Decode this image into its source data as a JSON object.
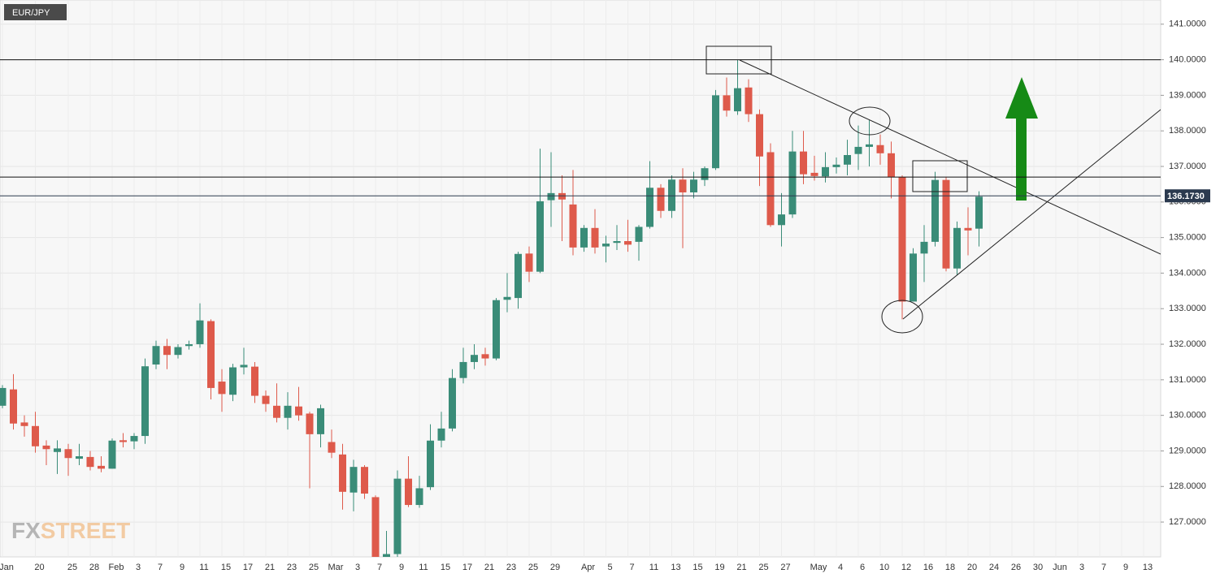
{
  "chart_data": {
    "type": "candlestick",
    "title": "EUR/JPY",
    "watermark": [
      "FX",
      "STREET"
    ],
    "up_color": "#3a8c78",
    "down_color": "#de5a4b",
    "grid": true,
    "ylim": [
      126.02,
      141.68
    ],
    "yticks": [
      {
        "value": 127,
        "label": "127.0000"
      },
      {
        "value": 128,
        "label": "128.0000"
      },
      {
        "value": 129,
        "label": "129.0000"
      },
      {
        "value": 130,
        "label": "130.0000"
      },
      {
        "value": 131,
        "label": "131.0000"
      },
      {
        "value": 132,
        "label": "132.0000"
      },
      {
        "value": 133,
        "label": "133.0000"
      },
      {
        "value": 134,
        "label": "134.0000"
      },
      {
        "value": 135,
        "label": "135.0000"
      },
      {
        "value": 136,
        "label": "136.0000"
      },
      {
        "value": 137,
        "label": "137.0000"
      },
      {
        "value": 138,
        "label": "138.0000"
      },
      {
        "value": 139,
        "label": "139.0000"
      },
      {
        "value": 140,
        "label": "140.0000"
      },
      {
        "value": 141,
        "label": "141.0000"
      }
    ],
    "levels": [
      140,
      136.7
    ],
    "last_price": {
      "value": 136.173,
      "label": "136.1730"
    },
    "categories": [
      "Jan",
      null,
      null,
      "20",
      null,
      null,
      "25",
      null,
      "28",
      null,
      "Feb",
      null,
      "3",
      null,
      "7",
      null,
      "9",
      null,
      "11",
      null,
      "15",
      null,
      "17",
      null,
      "21",
      null,
      "23",
      null,
      "25",
      null,
      "Mar",
      null,
      "3",
      null,
      "7",
      null,
      "9",
      null,
      "11",
      null,
      "15",
      null,
      "17",
      null,
      "21",
      null,
      "23",
      null,
      "25",
      null,
      "29",
      null,
      null,
      "Apr",
      null,
      "5",
      null,
      "7",
      null,
      "11",
      null,
      "13",
      null,
      "15",
      null,
      "19",
      null,
      "21",
      null,
      "25",
      null,
      "27",
      null,
      null,
      "May",
      null,
      "4",
      null,
      "6",
      null,
      "10",
      null,
      "12",
      null,
      "16",
      null,
      "18",
      null,
      "20",
      null,
      "24",
      null,
      "26",
      null,
      "30",
      null,
      "Jun",
      null,
      "3",
      null,
      "7",
      null,
      "9",
      null,
      "13",
      null
    ],
    "open": [
      130.27,
      130.73,
      129.8,
      129.7,
      129.15,
      128.97,
      129.05,
      128.78,
      128.83,
      128.58,
      128.5,
      129.3,
      129.27,
      129.42,
      131.43,
      131.95,
      131.7,
      131.95,
      132.0,
      132.65,
      130.95,
      130.58,
      131.35,
      131.37,
      130.55,
      130.27,
      129.93,
      130.25,
      130.05,
      129.47,
      129.25,
      128.9,
      127.83,
      128.55,
      127.7,
      126.0,
      126.1,
      128.22,
      127.48,
      127.98,
      129.29,
      129.63,
      131.05,
      131.5,
      131.72,
      131.6,
      133.25,
      133.3,
      134.55,
      134.04,
      136.05,
      136.25,
      135.93,
      134.72,
      135.27,
      134.75,
      134.85,
      134.9,
      134.88,
      135.3,
      136.4,
      135.75,
      136.63,
      136.27,
      136.62,
      136.95,
      139.0,
      138.55,
      139.22,
      138.47,
      137.4,
      135.35,
      135.65,
      137.42,
      136.82,
      136.72,
      136.98,
      137.05,
      137.35,
      137.55,
      137.6,
      137.37,
      136.7,
      133.2,
      134.55,
      134.88,
      136.62,
      134.13,
      135.27,
      135.25,
      null,
      null,
      null,
      null,
      null,
      null,
      null,
      null,
      null,
      null,
      null,
      null,
      null,
      null,
      null,
      null
    ],
    "high": [
      130.85,
      131.16,
      130.0,
      130.1,
      129.3,
      129.3,
      129.2,
      129.2,
      129.0,
      128.85,
      129.35,
      129.5,
      129.5,
      131.6,
      132.1,
      132.15,
      132.0,
      132.1,
      133.15,
      132.7,
      131.3,
      131.45,
      131.9,
      131.5,
      130.7,
      130.9,
      130.65,
      130.8,
      130.1,
      130.3,
      129.6,
      129.2,
      128.75,
      128.6,
      127.75,
      126.75,
      128.45,
      128.85,
      128.3,
      129.75,
      130.1,
      131.3,
      131.9,
      132.0,
      131.9,
      133.3,
      134.0,
      134.6,
      134.75,
      137.5,
      137.4,
      136.75,
      136.9,
      135.35,
      135.8,
      135.05,
      135.35,
      135.5,
      135.35,
      137.15,
      136.5,
      136.75,
      136.95,
      136.85,
      137.0,
      139.15,
      139.5,
      140.0,
      139.45,
      138.6,
      137.65,
      136.25,
      138.0,
      138.0,
      137.3,
      137.4,
      137.25,
      137.75,
      138.15,
      138.3,
      137.9,
      137.7,
      136.75,
      134.7,
      135.35,
      136.85,
      136.7,
      135.45,
      135.85,
      136.3,
      null,
      null,
      null,
      null,
      null,
      null,
      null,
      null,
      null,
      null,
      null,
      null,
      null,
      null,
      null,
      null
    ],
    "low": [
      130.2,
      129.6,
      129.4,
      128.95,
      128.6,
      128.35,
      128.3,
      128.6,
      128.45,
      128.4,
      128.5,
      129.1,
      129.05,
      129.2,
      131.3,
      131.3,
      131.6,
      131.85,
      131.9,
      130.45,
      130.1,
      130.4,
      131.15,
      130.35,
      130.1,
      129.8,
      129.6,
      129.85,
      127.95,
      129.1,
      128.8,
      127.35,
      127.3,
      127.65,
      125.8,
      125.9,
      126.0,
      127.42,
      127.4,
      127.9,
      129.1,
      129.55,
      130.9,
      131.3,
      131.4,
      131.55,
      132.9,
      133.0,
      133.75,
      134.0,
      135.3,
      134.9,
      134.5,
      134.6,
      134.55,
      134.3,
      134.65,
      134.6,
      134.35,
      135.25,
      135.55,
      135.55,
      134.7,
      136.1,
      136.45,
      136.9,
      138.4,
      138.45,
      138.25,
      136.45,
      135.3,
      134.75,
      135.55,
      136.5,
      136.6,
      136.55,
      136.8,
      136.75,
      136.9,
      137.0,
      137.05,
      136.1,
      132.7,
      133.2,
      133.75,
      134.75,
      134.05,
      133.95,
      134.5,
      134.75,
      null,
      null,
      null,
      null,
      null,
      null,
      null,
      null,
      null,
      null,
      null,
      null,
      null,
      null,
      null,
      null
    ],
    "close": [
      130.77,
      129.77,
      129.7,
      129.13,
      129.05,
      129.07,
      128.8,
      128.85,
      128.55,
      128.5,
      129.29,
      129.25,
      129.42,
      131.38,
      131.95,
      131.7,
      131.92,
      132.0,
      132.67,
      130.77,
      130.6,
      131.35,
      131.42,
      130.55,
      130.32,
      129.93,
      130.27,
      130.0,
      129.47,
      130.2,
      128.95,
      127.85,
      128.55,
      127.8,
      125.9,
      126.1,
      128.22,
      127.48,
      127.95,
      129.29,
      129.63,
      131.05,
      131.5,
      131.7,
      131.6,
      133.24,
      133.33,
      134.54,
      134.04,
      136.02,
      136.25,
      136.07,
      134.72,
      135.27,
      134.72,
      134.83,
      134.9,
      134.8,
      135.3,
      136.4,
      135.75,
      136.63,
      136.27,
      136.63,
      136.95,
      139.0,
      138.57,
      139.2,
      138.47,
      137.28,
      135.35,
      135.65,
      137.42,
      136.78,
      136.73,
      136.98,
      137.05,
      137.32,
      137.55,
      137.62,
      137.37,
      136.7,
      133.2,
      134.55,
      134.88,
      136.62,
      134.13,
      135.27,
      135.2,
      136.15,
      null,
      null,
      null,
      null,
      null,
      null,
      null,
      null,
      null,
      null,
      null,
      null,
      null,
      null,
      null,
      null
    ]
  }
}
